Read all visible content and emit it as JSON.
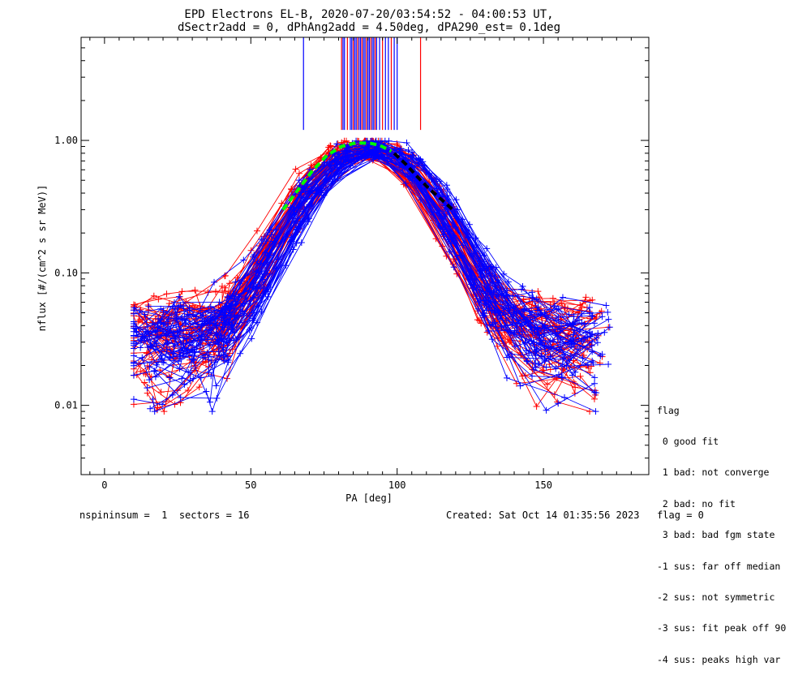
{
  "chart_data": {
    "type": "line",
    "title": "EPD Electrons EL-B, 2020-07-20/03:54:52 - 04:00:53 UT,",
    "subtitle": "dSectr2add = 0, dPhAng2add = 4.50deg, dPA290_est=   0.1deg",
    "xlabel": "PA [deg]",
    "ylabel": "nflux [#/(cm^2 s sr MeV)]",
    "xlim": [
      -8,
      186
    ],
    "ylim": [
      0.003,
      6
    ],
    "yscale": "log",
    "xticks": [
      "0",
      "50",
      "100",
      "150"
    ],
    "yticks": [
      "0.01",
      "0.10",
      "1.00"
    ],
    "series": [
      {
        "color": "#ff0000",
        "count": 50
      },
      {
        "color": "#0000ff",
        "count": 50
      }
    ],
    "fit_curves": [
      {
        "color": "#00ff00",
        "dashed": true,
        "x": [
          61,
          66,
          71,
          76,
          81,
          86,
          91,
          94,
          98
        ],
        "y": [
          0.3,
          0.42,
          0.59,
          0.77,
          0.9,
          0.96,
          0.95,
          0.92,
          0.83
        ]
      },
      {
        "color": "#000000",
        "dashed": true,
        "x": [
          99,
          103,
          107,
          111,
          115,
          119
        ],
        "y": [
          0.8,
          0.66,
          0.53,
          0.43,
          0.36,
          0.3
        ]
      }
    ],
    "peak_marks": {
      "color_blue": "#0000ff",
      "color_red": "#ff0000",
      "pa_values": [
        68,
        81,
        81.5,
        82,
        83,
        84,
        84.5,
        85,
        85.5,
        86,
        86.5,
        87,
        87.5,
        88,
        88.5,
        89,
        89.5,
        90,
        90.5,
        91,
        91.5,
        92,
        92.5,
        93,
        94,
        95,
        96,
        97,
        98,
        99,
        100,
        108
      ]
    }
  },
  "legend": {
    "title": "flag",
    "items": [
      " 0 good fit",
      " 1 bad: not converge",
      " 2 bad: no fit",
      " 3 bad: bad fgm state",
      "-1 sus: far off median",
      "-2 sus: not symmetric",
      "-3 sus: fit peak off 90",
      "-4 sus: peaks high var"
    ]
  },
  "footer": {
    "left": "nspininsum =  1  sectors = 16",
    "right": "Created: Sat Oct 14 01:35:56 2023   flag = 0"
  }
}
